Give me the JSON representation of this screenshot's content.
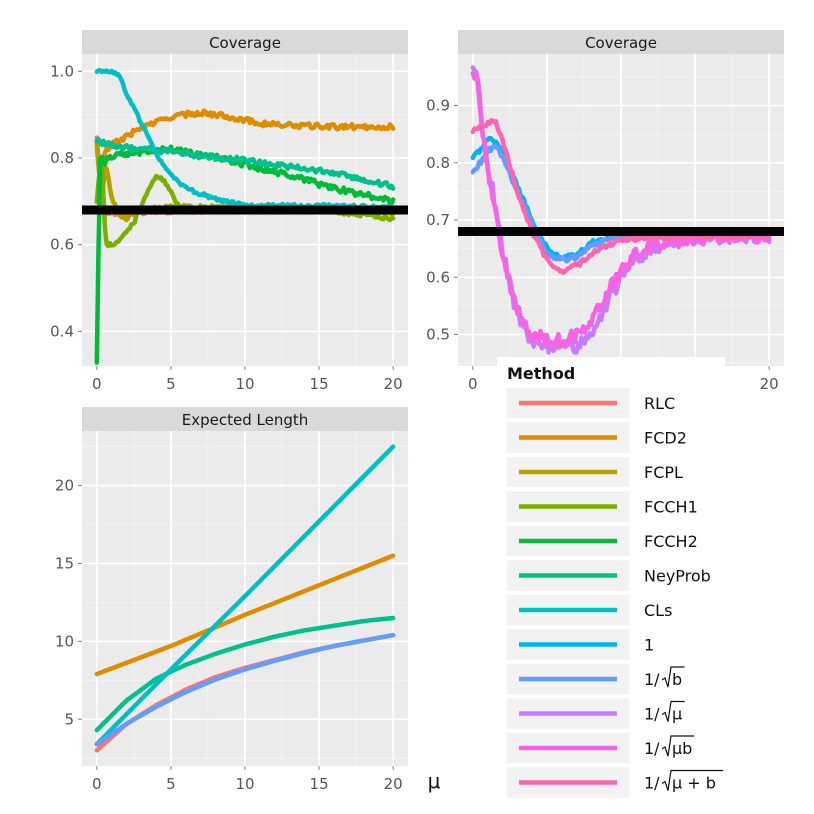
{
  "chart_data": {
    "xlabel": "μ",
    "colors": {
      "RLC": "#F8766D",
      "FCD2": "#DE8C00",
      "FCPL": "#B79F00",
      "FCCH1": "#7CAE00",
      "FCCH2": "#00BA38",
      "NeyProb": "#00C08B",
      "CLs": "#00BFC4",
      "1": "#00B4F0",
      "1/sqrt(b)": "#619CFF",
      "1/sqrt(mu)": "#C77CFF",
      "1/sqrt(mu b)": "#F564E3",
      "1/sqrt(mu+b)": "#FF64B0"
    },
    "legend": {
      "title": "Method",
      "entries": [
        {
          "key": "RLC",
          "label": "RLC",
          "math": false
        },
        {
          "key": "FCD2",
          "label": "FCD2",
          "math": false
        },
        {
          "key": "FCPL",
          "label": "FCPL",
          "math": false
        },
        {
          "key": "FCCH1",
          "label": "FCCH1",
          "math": false
        },
        {
          "key": "FCCH2",
          "label": "FCCH2",
          "math": false
        },
        {
          "key": "NeyProb",
          "label": "NeyProb",
          "math": false
        },
        {
          "key": "CLs",
          "label": "CLs",
          "math": false
        },
        {
          "key": "1",
          "label": "1",
          "math": false
        },
        {
          "key": "1/sqrt(b)",
          "label": "b",
          "math": true
        },
        {
          "key": "1/sqrt(mu)",
          "label": "μ",
          "math": true
        },
        {
          "key": "1/sqrt(mu b)",
          "label": "μb",
          "math": true
        },
        {
          "key": "1/sqrt(mu+b)",
          "label": "μ + b",
          "math": true
        }
      ]
    },
    "panels": [
      {
        "id": "coverage-left",
        "title": "Coverage",
        "type": "line",
        "xlim": [
          -1,
          21
        ],
        "ylim": [
          0.32,
          1.04
        ],
        "xticks": [
          0,
          5,
          10,
          15,
          20
        ],
        "yticks": [
          0.4,
          0.6,
          0.8,
          1.0
        ],
        "ytick_labels": [
          "0.4",
          "0.6",
          "0.8",
          "1.0"
        ],
        "reference_line": 0.68,
        "series": [
          {
            "name": "RLC",
            "noise": 0.006,
            "x": [
              0,
              0.3,
              0.6,
              1,
              1.5,
              2,
              3,
              5,
              8,
              12,
              16,
              20
            ],
            "y": [
              0.85,
              0.7,
              0.67,
              0.67,
              0.67,
              0.67,
              0.675,
              0.678,
              0.68,
              0.68,
              0.68,
              0.678
            ]
          },
          {
            "name": "FCD2",
            "noise": 0.006,
            "x": [
              0,
              0.2,
              0.5,
              1,
              2,
              3,
              5,
              7,
              9,
              11,
              13,
              16,
              20
            ],
            "y": [
              0.84,
              0.75,
              0.81,
              0.83,
              0.85,
              0.87,
              0.895,
              0.905,
              0.895,
              0.88,
              0.875,
              0.872,
              0.872
            ]
          },
          {
            "name": "FCPL",
            "noise": 0.004,
            "x": [
              0,
              0.3,
              0.6,
              1,
              1.5,
              2,
              2.5,
              3,
              4,
              6,
              10,
              15,
              20
            ],
            "y": [
              0.83,
              0.7,
              0.79,
              0.71,
              0.67,
              0.66,
              0.68,
              0.675,
              0.685,
              0.688,
              0.685,
              0.68,
              0.672
            ]
          },
          {
            "name": "FCCH1",
            "noise": 0.004,
            "x": [
              0,
              0.3,
              0.6,
              1,
              1.5,
              2,
              2.5,
              3,
              3.5,
              4,
              4.5,
              5,
              5.5,
              6,
              7,
              10,
              15,
              20
            ],
            "y": [
              0.7,
              0.82,
              0.6,
              0.6,
              0.61,
              0.63,
              0.65,
              0.69,
              0.73,
              0.755,
              0.75,
              0.72,
              0.69,
              0.68,
              0.685,
              0.685,
              0.68,
              0.66
            ]
          },
          {
            "name": "FCCH2",
            "noise": 0.007,
            "x": [
              0,
              0.2,
              0.5,
              1,
              2,
              3,
              4,
              5,
              7,
              10,
              13,
              16,
              20
            ],
            "y": [
              0.33,
              0.8,
              0.79,
              0.805,
              0.81,
              0.815,
              0.82,
              0.82,
              0.81,
              0.785,
              0.76,
              0.73,
              0.7
            ]
          },
          {
            "name": "NeyProb",
            "noise": 0.006,
            "x": [
              0,
              0.3,
              1,
              2,
              3,
              5,
              7,
              10,
              13,
              16,
              20
            ],
            "y": [
              0.84,
              0.835,
              0.83,
              0.825,
              0.82,
              0.815,
              0.805,
              0.795,
              0.78,
              0.765,
              0.735
            ]
          },
          {
            "name": "CLs",
            "noise": 0.004,
            "x": [
              0,
              0.5,
              1,
              1.5,
              2,
              3,
              4,
              5,
              6,
              8,
              10,
              13,
              16,
              20
            ],
            "y": [
              1.0,
              1.0,
              1.0,
              0.99,
              0.95,
              0.88,
              0.81,
              0.76,
              0.73,
              0.705,
              0.69,
              0.69,
              0.69,
              0.685
            ]
          }
        ]
      },
      {
        "id": "coverage-right",
        "title": "Coverage",
        "type": "line",
        "xlim": [
          -1,
          21
        ],
        "ylim": [
          0.445,
          0.99
        ],
        "xticks": [
          0,
          20
        ],
        "yticks": [
          0.5,
          0.6,
          0.7,
          0.8,
          0.9
        ],
        "ytick_labels": [
          "0.5",
          "0.6",
          "0.7",
          "0.8",
          "0.9"
        ],
        "reference_line": 0.68,
        "series": [
          {
            "name": "1",
            "noise": 0.004,
            "x": [
              0,
              0.5,
              1,
              1.5,
              2,
              3,
              4,
              5,
              6,
              7,
              8,
              10,
              13,
              16,
              20
            ],
            "y": [
              0.81,
              0.82,
              0.84,
              0.84,
              0.82,
              0.76,
              0.7,
              0.65,
              0.635,
              0.64,
              0.66,
              0.675,
              0.68,
              0.68,
              0.68
            ]
          },
          {
            "name": "1/sqrt(b)",
            "noise": 0.004,
            "x": [
              0,
              0.5,
              1,
              1.5,
              2,
              3,
              4,
              5,
              6,
              7,
              8,
              10,
              13,
              16,
              20
            ],
            "y": [
              0.785,
              0.8,
              0.82,
              0.83,
              0.81,
              0.75,
              0.69,
              0.64,
              0.63,
              0.635,
              0.655,
              0.672,
              0.678,
              0.68,
              0.68
            ]
          },
          {
            "name": "1/sqrt(mu)",
            "noise": 0.012,
            "x": [
              0,
              0.3,
              0.7,
              1,
              1.5,
              2,
              3,
              4,
              5,
              6,
              7,
              8,
              9,
              10,
              11,
              12,
              14,
              16,
              20
            ],
            "y": [
              0.97,
              0.96,
              0.85,
              0.8,
              0.73,
              0.65,
              0.53,
              0.49,
              0.48,
              0.48,
              0.48,
              0.5,
              0.55,
              0.6,
              0.63,
              0.65,
              0.665,
              0.67,
              0.672
            ]
          },
          {
            "name": "1/sqrt(mu b)",
            "noise": 0.012,
            "x": [
              0,
              0.3,
              0.7,
              1,
              1.5,
              2,
              3,
              4,
              5,
              6,
              7,
              8,
              9,
              10,
              11,
              12,
              14,
              16,
              20
            ],
            "y": [
              0.96,
              0.95,
              0.84,
              0.79,
              0.72,
              0.64,
              0.54,
              0.5,
              0.49,
              0.49,
              0.5,
              0.52,
              0.57,
              0.61,
              0.64,
              0.655,
              0.665,
              0.67,
              0.672
            ]
          },
          {
            "name": "1/sqrt(mu+b)",
            "noise": 0.004,
            "x": [
              0,
              0.5,
              1,
              1.5,
              2,
              3,
              4,
              5,
              6,
              7,
              8,
              9,
              10,
              12,
              16,
              20
            ],
            "y": [
              0.855,
              0.86,
              0.87,
              0.875,
              0.84,
              0.75,
              0.68,
              0.63,
              0.61,
              0.62,
              0.64,
              0.655,
              0.665,
              0.67,
              0.672,
              0.672
            ]
          }
        ]
      },
      {
        "id": "expected-length",
        "title": "Expected Length",
        "type": "line",
        "xlim": [
          -1,
          21
        ],
        "ylim": [
          2.0,
          23.5
        ],
        "xticks": [
          0,
          5,
          10,
          15,
          20
        ],
        "yticks": [
          5,
          10,
          15,
          20
        ],
        "ytick_labels": [
          "5",
          "10",
          "15",
          "20"
        ],
        "xtick_labels": [
          "0",
          "5",
          "10",
          "15",
          "20"
        ],
        "series": [
          {
            "name": "RLC",
            "noise": 0,
            "x": [
              0,
              2,
              4,
              6,
              8,
              10,
              12,
              14,
              16,
              18,
              20
            ],
            "y": [
              3.0,
              4.7,
              5.9,
              6.9,
              7.7,
              8.3,
              8.8,
              9.3,
              9.7,
              10.05,
              10.4
            ]
          },
          {
            "name": "FCD2",
            "noise": 0,
            "x": [
              0,
              5,
              10,
              15,
              20
            ],
            "y": [
              7.9,
              9.7,
              11.7,
              13.6,
              15.5
            ]
          },
          {
            "name": "NeyProb",
            "noise": 0,
            "x": [
              0,
              2,
              4,
              6,
              8,
              10,
              12,
              14,
              16,
              18,
              20
            ],
            "y": [
              4.3,
              6.2,
              7.6,
              8.5,
              9.2,
              9.8,
              10.3,
              10.7,
              11.0,
              11.3,
              11.5
            ]
          },
          {
            "name": "CLs",
            "noise": 0,
            "x": [
              0,
              5,
              10,
              15,
              20
            ],
            "y": [
              3.4,
              8.2,
              12.9,
              17.7,
              22.5
            ]
          },
          {
            "name": "1/sqrt(b)",
            "noise": 0,
            "x": [
              0,
              2,
              4,
              6,
              8,
              10,
              12,
              14,
              16,
              18,
              20
            ],
            "y": [
              3.4,
              4.7,
              5.8,
              6.75,
              7.55,
              8.2,
              8.75,
              9.25,
              9.7,
              10.05,
              10.4
            ]
          }
        ]
      }
    ]
  }
}
